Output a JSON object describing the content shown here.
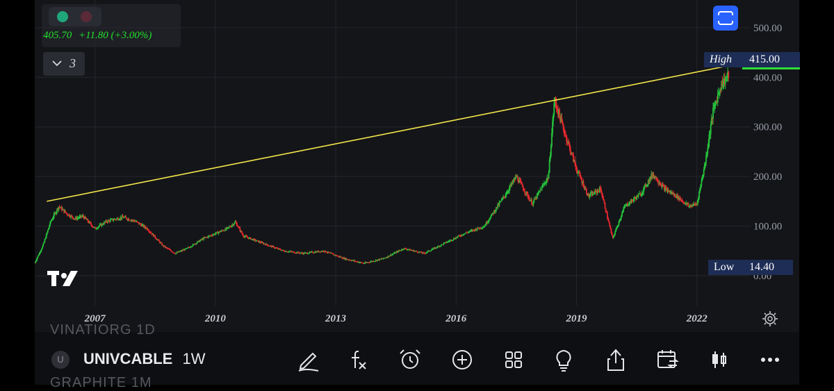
{
  "chart_data": {
    "type": "candlestick",
    "symbol": "UNIVCABLE",
    "interval": "1W",
    "yscale": "linear",
    "ylim": [
      0,
      525
    ],
    "y_ticks": [
      "500.00",
      "400.00",
      "300.00",
      "200.00",
      "100.00",
      "0.00"
    ],
    "x_ticks": [
      "2007",
      "2010",
      "2013",
      "2016",
      "2019",
      "2022"
    ],
    "series": [
      {
        "points": [
          [
            "2005.8",
            26
          ],
          [
            "2006.0",
            60
          ],
          [
            "2006.2",
            110
          ],
          [
            "2006.4",
            140
          ],
          [
            "2006.6",
            125
          ],
          [
            "2006.8",
            115
          ],
          [
            "2007.0",
            120
          ],
          [
            "2007.3",
            95
          ],
          [
            "2007.6",
            110
          ],
          [
            "2008.0",
            118
          ],
          [
            "2008.3",
            110
          ],
          [
            "2008.6",
            95
          ],
          [
            "2009.0",
            60
          ],
          [
            "2009.3",
            45
          ],
          [
            "2009.6",
            55
          ],
          [
            "2010.0",
            75
          ],
          [
            "2010.3",
            85
          ],
          [
            "2010.6",
            95
          ],
          [
            "2010.8",
            108
          ],
          [
            "2011.0",
            80
          ],
          [
            "2011.5",
            65
          ],
          [
            "2012.0",
            50
          ],
          [
            "2012.5",
            45
          ],
          [
            "2013.0",
            50
          ],
          [
            "2013.5",
            35
          ],
          [
            "2014.0",
            25
          ],
          [
            "2014.5",
            35
          ],
          [
            "2015.0",
            55
          ],
          [
            "2015.5",
            45
          ],
          [
            "2016.0",
            65
          ],
          [
            "2016.5",
            85
          ],
          [
            "2017.0",
            100
          ],
          [
            "2017.5",
            160
          ],
          [
            "2017.8",
            200
          ],
          [
            "2018.2",
            145
          ],
          [
            "2018.6",
            200
          ],
          [
            "2018.75",
            355
          ],
          [
            "2019.0",
            290
          ],
          [
            "2019.3",
            215
          ],
          [
            "2019.6",
            160
          ],
          [
            "2019.9",
            175
          ],
          [
            "2020.2",
            75
          ],
          [
            "2020.5",
            140
          ],
          [
            "2020.9",
            165
          ],
          [
            "2021.2",
            205
          ],
          [
            "2021.5",
            175
          ],
          [
            "2021.8",
            160
          ],
          [
            "2022.1",
            140
          ],
          [
            "2022.3",
            145
          ],
          [
            "2022.5",
            225
          ],
          [
            "2022.7",
            330
          ],
          [
            "2022.9",
            385
          ],
          [
            "2023.1",
            405
          ]
        ]
      }
    ],
    "high": "415.00",
    "low": "14.40",
    "trendline": {
      "from": [
        "2006.1",
        150
      ],
      "to": [
        "2023.5",
        430
      ]
    }
  },
  "legend": {
    "price": "405.70",
    "change": "+11.80 (+3.00%)",
    "indicator_count": "3"
  },
  "markers": {
    "high_label": "High",
    "high_value": "415.00",
    "low_label": "Low",
    "low_value": "14.40"
  },
  "logo": "TV",
  "symbol_bar": {
    "avatar": "U",
    "ticker": "UNIVCABLE",
    "interval": "1W",
    "prev_ghost": "VINATIORG  1D",
    "next_ghost": "GRAPHITE    1M"
  },
  "colors": {
    "up": "#26c43c",
    "down": "#e8282e",
    "trendline": "#f5e74a",
    "accent": "#2962ff"
  },
  "toolbar_icons": [
    "pencil-icon",
    "fx-icon",
    "alarm-icon",
    "plus-circle-icon",
    "grid-icon",
    "bulb-icon",
    "share-icon",
    "calendar-replay-icon",
    "candles-icon",
    "more-icon"
  ]
}
